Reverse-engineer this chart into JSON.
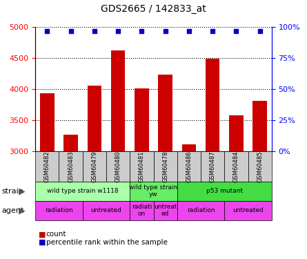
{
  "title": "GDS2665 / 142833_at",
  "samples": [
    "GSM60482",
    "GSM60483",
    "GSM60479",
    "GSM60480",
    "GSM60481",
    "GSM60478",
    "GSM60486",
    "GSM60487",
    "GSM60484",
    "GSM60485"
  ],
  "counts": [
    3940,
    3270,
    4060,
    4630,
    4010,
    4240,
    3110,
    4490,
    3580,
    3810
  ],
  "percentiles": [
    97,
    97,
    97,
    97,
    97,
    97,
    97,
    97,
    97,
    97
  ],
  "ylim_left": [
    3000,
    5000
  ],
  "ylim_right": [
    0,
    100
  ],
  "yticks_left": [
    3000,
    3500,
    4000,
    4500,
    5000
  ],
  "yticks_right": [
    0,
    25,
    50,
    75,
    100
  ],
  "bar_color": "#cc0000",
  "dot_color": "#0000cc",
  "sample_box_color": "#cccccc",
  "strain_colors": [
    "#aaffaa",
    "#66ee66",
    "#44dd44"
  ],
  "agent_color": "#ee44ee",
  "legend_count_color": "#cc0000",
  "legend_pct_color": "#0000cc",
  "strain_group_labels": [
    "wild type strain w1118",
    "wild type strain\nyw",
    "p53 mutant"
  ],
  "strain_group_starts": [
    0,
    4,
    6
  ],
  "strain_group_ends": [
    4,
    6,
    10
  ],
  "agent_group_labels": [
    "radiation",
    "untreated",
    "radiati\non",
    "untreat\ned",
    "radiation",
    "untreated"
  ],
  "agent_group_starts": [
    0,
    2,
    4,
    5,
    6,
    8
  ],
  "agent_group_ends": [
    2,
    4,
    5,
    6,
    8,
    10
  ]
}
